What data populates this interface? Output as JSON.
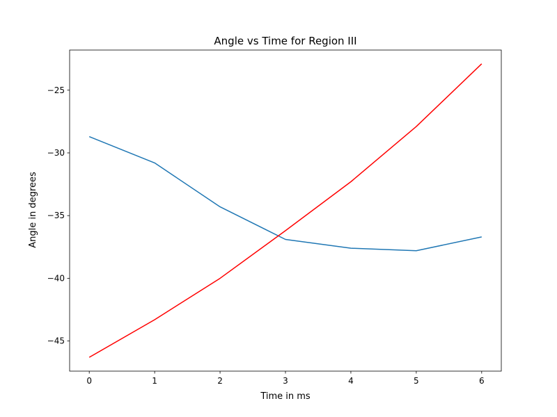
{
  "chart_data": {
    "type": "line",
    "title": "Angle vs Time for Region III",
    "xlabel": "Time in ms",
    "ylabel": "Angle in degrees",
    "xlim": [
      -0.3,
      6.3
    ],
    "ylim": [
      -47.4,
      -21.8
    ],
    "xticks": [
      0,
      1,
      2,
      3,
      4,
      5,
      6
    ],
    "yticks": [
      -45,
      -40,
      -35,
      -30,
      -25
    ],
    "x": [
      0,
      1,
      2,
      3,
      4,
      5,
      6
    ],
    "series": [
      {
        "color": "#1f77b4",
        "values": [
          -28.7,
          -30.8,
          -34.3,
          -36.9,
          -37.6,
          -37.8,
          -36.7
        ]
      },
      {
        "color": "#ff0000",
        "values": [
          -46.3,
          -43.3,
          -40.0,
          -36.2,
          -32.3,
          -27.9,
          -22.9
        ]
      }
    ],
    "grid": false,
    "legend": "none"
  }
}
